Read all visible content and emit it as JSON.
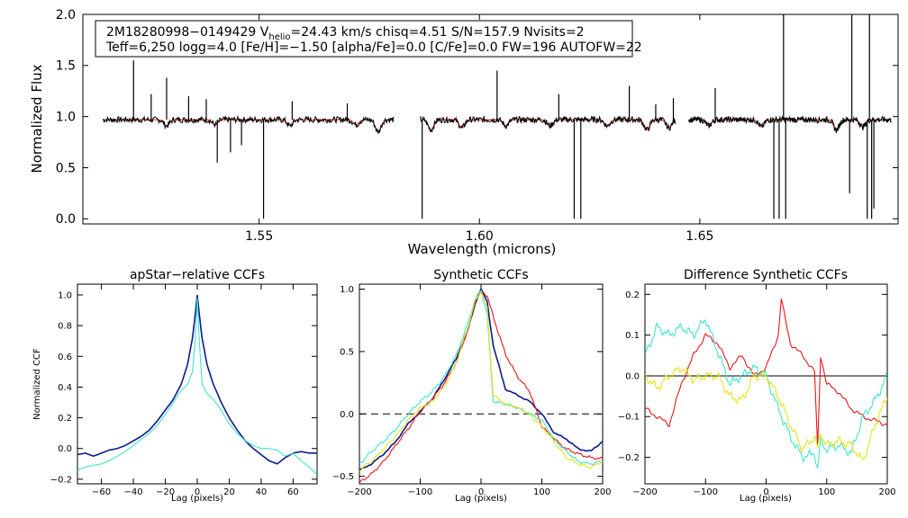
{
  "chart_data": [
    {
      "type": "line",
      "name": "spectrum",
      "xlabel": "Wavelength (microns)",
      "ylabel": "Normalized Flux",
      "xlim": [
        1.51,
        1.695
      ],
      "ylim": [
        -0.05,
        2.0
      ],
      "xticks": [
        "1.55",
        "1.60",
        "1.65"
      ],
      "xtick_values": [
        1.55,
        1.6,
        1.65
      ],
      "yticks": [
        "0.0",
        "0.5",
        "1.0",
        "1.5",
        "2.0"
      ],
      "ytick_values": [
        0.0,
        0.5,
        1.0,
        1.5,
        2.0
      ],
      "info_line1_prefix": "2M18280998−0149429  V",
      "info_line1_sub": "helio",
      "info_line1_suffix": "=24.43 km/s  chisq=4.51  S/N=157.9  Nvisits=2",
      "info_line2": "Teff=6,250 logg=4.0 [Fe/H]=−1.50 [alpha/Fe]=0.0 [C/Fe]=0.0 FW=196 AUTOFW=22",
      "chips": [
        [
          1.5145,
          1.5805
        ],
        [
          1.5865,
          1.6445
        ],
        [
          1.6475,
          1.6935
        ]
      ],
      "continuum": 0.97,
      "colors": {
        "data": "#000000",
        "model": "#e8161b"
      },
      "spikes": [
        {
          "x": 1.5215,
          "y": 1.55
        },
        {
          "x": 1.5255,
          "y": 1.22
        },
        {
          "x": 1.529,
          "y": 1.38
        },
        {
          "x": 1.534,
          "y": 1.2
        },
        {
          "x": 1.538,
          "y": 1.17
        },
        {
          "x": 1.5405,
          "y": 0.55
        },
        {
          "x": 1.5435,
          "y": 0.65
        },
        {
          "x": 1.546,
          "y": 0.72
        },
        {
          "x": 1.551,
          "y": 0.0
        },
        {
          "x": 1.5575,
          "y": 1.15
        },
        {
          "x": 1.57,
          "y": 1.13
        },
        {
          "x": 1.587,
          "y": 0.0
        },
        {
          "x": 1.604,
          "y": 1.45
        },
        {
          "x": 1.618,
          "y": 1.22
        },
        {
          "x": 1.6215,
          "y": 0.0
        },
        {
          "x": 1.623,
          "y": 0.0
        },
        {
          "x": 1.634,
          "y": 1.3
        },
        {
          "x": 1.64,
          "y": 1.12
        },
        {
          "x": 1.644,
          "y": 1.18
        },
        {
          "x": 1.6535,
          "y": 1.28
        },
        {
          "x": 1.6668,
          "y": 0.0
        },
        {
          "x": 1.668,
          "y": 0.0
        },
        {
          "x": 1.669,
          "y": 2.0
        },
        {
          "x": 1.6695,
          "y": 0.0
        },
        {
          "x": 1.684,
          "y": 0.25
        },
        {
          "x": 1.6845,
          "y": 2.0
        },
        {
          "x": 1.688,
          "y": 0.0
        },
        {
          "x": 1.6885,
          "y": 2.0
        },
        {
          "x": 1.689,
          "y": 0.0
        },
        {
          "x": 1.6895,
          "y": 0.1
        }
      ],
      "absorption": [
        {
          "x": 1.529,
          "d": 0.06
        },
        {
          "x": 1.54,
          "d": 0.05
        },
        {
          "x": 1.557,
          "d": 0.06
        },
        {
          "x": 1.572,
          "d": 0.05
        },
        {
          "x": 1.577,
          "d": 0.12
        },
        {
          "x": 1.589,
          "d": 0.1
        },
        {
          "x": 1.596,
          "d": 0.08
        },
        {
          "x": 1.606,
          "d": 0.06
        },
        {
          "x": 1.616,
          "d": 0.06
        },
        {
          "x": 1.629,
          "d": 0.06
        },
        {
          "x": 1.638,
          "d": 0.1
        },
        {
          "x": 1.643,
          "d": 0.08
        },
        {
          "x": 1.652,
          "d": 0.06
        },
        {
          "x": 1.664,
          "d": 0.07
        },
        {
          "x": 1.681,
          "d": 0.1
        },
        {
          "x": 1.687,
          "d": 0.07
        }
      ]
    },
    {
      "type": "line",
      "name": "apstar-ccf",
      "title": "apStar−relative CCFs",
      "xlabel": "Lag (pixels)",
      "ylabel": "Normalized CCF",
      "xlim": [
        -75,
        75
      ],
      "ylim": [
        -0.23,
        1.07
      ],
      "xticks": [
        "−60",
        "−40",
        "−20",
        "0",
        "20",
        "40",
        "60"
      ],
      "xtick_values": [
        -60,
        -40,
        -20,
        0,
        20,
        40,
        60
      ],
      "yticks": [
        "−0.2",
        "0.0",
        "0.2",
        "0.4",
        "0.6",
        "0.8",
        "1.0"
      ],
      "ytick_values": [
        -0.2,
        0.0,
        0.2,
        0.4,
        0.6,
        0.8,
        1.0
      ],
      "series": [
        {
          "name": "total",
          "color": "#0d1a8c",
          "x": [
            -75,
            -70,
            -65,
            -60,
            -55,
            -50,
            -45,
            -40,
            -35,
            -30,
            -25,
            -20,
            -15,
            -10,
            -6,
            -3,
            -1,
            0,
            1,
            3,
            6,
            10,
            15,
            20,
            25,
            30,
            35,
            40,
            45,
            50,
            55,
            60,
            65,
            70,
            75
          ],
          "y": [
            -0.04,
            -0.03,
            -0.05,
            -0.03,
            -0.01,
            0.0,
            0.02,
            0.05,
            0.08,
            0.12,
            0.18,
            0.25,
            0.32,
            0.42,
            0.55,
            0.72,
            0.9,
            1.0,
            0.9,
            0.72,
            0.55,
            0.42,
            0.3,
            0.2,
            0.12,
            0.05,
            0.0,
            -0.04,
            -0.08,
            -0.1,
            -0.06,
            -0.03,
            -0.02,
            -0.03,
            -0.03
          ]
        },
        {
          "name": "visit",
          "color": "#3fe6c9",
          "x": [
            -75,
            -70,
            -65,
            -60,
            -55,
            -50,
            -45,
            -40,
            -35,
            -30,
            -25,
            -20,
            -15,
            -10,
            -6,
            -3,
            -1,
            0,
            1,
            3,
            6,
            10,
            15,
            20,
            25,
            30,
            35,
            40,
            45,
            50,
            55,
            60,
            65,
            70,
            75
          ],
          "y": [
            -0.14,
            -0.12,
            -0.11,
            -0.1,
            -0.08,
            -0.05,
            -0.02,
            0.02,
            0.06,
            0.1,
            0.15,
            0.22,
            0.3,
            0.38,
            0.42,
            0.5,
            0.75,
            0.98,
            0.75,
            0.42,
            0.36,
            0.32,
            0.25,
            0.16,
            0.1,
            0.05,
            0.02,
            0.0,
            0.0,
            -0.01,
            -0.05,
            -0.03,
            -0.08,
            -0.12,
            -0.17
          ]
        }
      ]
    },
    {
      "type": "line",
      "name": "synthetic-ccf",
      "title": "Synthetic CCFs",
      "xlabel": "Lag (pixels)",
      "ylabel": "",
      "xlim": [
        -200,
        200
      ],
      "ylim": [
        -0.56,
        1.04
      ],
      "xticks": [
        "−200",
        "−100",
        "0",
        "100",
        "200"
      ],
      "xtick_values": [
        -200,
        -100,
        0,
        100,
        200
      ],
      "yticks": [
        "−0.5",
        "0.0",
        "0.5",
        "1.0"
      ],
      "ytick_values": [
        -0.5,
        0.0,
        0.5,
        1.0
      ],
      "zero_line": 0.0,
      "series": [
        {
          "name": "total",
          "color": "#0d1a8c",
          "x": [
            -200,
            -180,
            -160,
            -140,
            -120,
            -100,
            -80,
            -60,
            -40,
            -20,
            -10,
            0,
            10,
            20,
            40,
            60,
            80,
            100,
            120,
            140,
            160,
            180,
            200
          ],
          "y": [
            -0.45,
            -0.4,
            -0.32,
            -0.22,
            -0.08,
            0.02,
            0.12,
            0.28,
            0.45,
            0.7,
            0.88,
            1.0,
            0.9,
            0.55,
            0.2,
            0.15,
            0.1,
            0.0,
            -0.15,
            -0.2,
            -0.28,
            -0.3,
            -0.22
          ]
        },
        {
          "name": "chip-a",
          "color": "#e8161b",
          "x": [
            -200,
            -180,
            -160,
            -140,
            -120,
            -100,
            -80,
            -60,
            -40,
            -20,
            -10,
            0,
            10,
            20,
            40,
            60,
            80,
            100,
            120,
            140,
            160,
            180,
            200
          ],
          "y": [
            -0.55,
            -0.48,
            -0.38,
            -0.25,
            -0.12,
            0.02,
            0.12,
            0.25,
            0.42,
            0.7,
            0.9,
            0.98,
            0.95,
            0.78,
            0.48,
            0.3,
            0.18,
            -0.1,
            -0.2,
            -0.28,
            -0.32,
            -0.35,
            -0.36
          ]
        },
        {
          "name": "chip-b",
          "color": "#3fe6c9",
          "x": [
            -200,
            -180,
            -160,
            -140,
            -120,
            -100,
            -80,
            -60,
            -40,
            -20,
            -10,
            0,
            10,
            20,
            40,
            60,
            80,
            100,
            120,
            140,
            160,
            180,
            200
          ],
          "y": [
            -0.4,
            -0.3,
            -0.22,
            -0.12,
            0.0,
            0.1,
            0.18,
            0.3,
            0.48,
            0.75,
            0.92,
            0.99,
            0.8,
            0.1,
            0.08,
            0.05,
            0.0,
            -0.05,
            -0.2,
            -0.3,
            -0.38,
            -0.4,
            -0.38
          ]
        },
        {
          "name": "chip-c",
          "color": "#e3e61c",
          "x": [
            -200,
            -180,
            -160,
            -140,
            -120,
            -100,
            -80,
            -60,
            -40,
            -20,
            -10,
            0,
            10,
            20,
            40,
            60,
            80,
            100,
            120,
            140,
            160,
            180,
            200
          ],
          "y": [
            -0.45,
            -0.38,
            -0.28,
            -0.18,
            -0.05,
            0.05,
            0.1,
            0.22,
            0.42,
            0.72,
            0.9,
            0.98,
            0.85,
            0.15,
            0.08,
            0.05,
            0.0,
            -0.1,
            -0.22,
            -0.35,
            -0.4,
            -0.43,
            -0.38
          ]
        }
      ]
    },
    {
      "type": "line",
      "name": "difference-ccf",
      "title": "Difference Synthetic CCFs",
      "xlabel": "Lag (pixels)",
      "ylabel": "",
      "xlim": [
        -200,
        200
      ],
      "ylim": [
        -0.265,
        0.225
      ],
      "xticks": [
        "−200",
        "−100",
        "0",
        "100",
        "200"
      ],
      "xtick_values": [
        -200,
        -100,
        0,
        100,
        200
      ],
      "yticks": [
        "−0.2",
        "−0.1",
        "0.0",
        "0.1",
        "0.2"
      ],
      "ytick_values": [
        -0.2,
        -0.1,
        0.0,
        0.1,
        0.2
      ],
      "zero_line": 0.0,
      "series": [
        {
          "name": "chip-a",
          "color": "#e8161b",
          "x": [
            -200,
            -180,
            -160,
            -140,
            -120,
            -100,
            -80,
            -60,
            -40,
            -20,
            0,
            20,
            25,
            30,
            40,
            60,
            80,
            85,
            90,
            100,
            120,
            140,
            160,
            180,
            200
          ],
          "y": [
            -0.08,
            -0.1,
            -0.12,
            -0.02,
            0.05,
            0.1,
            0.08,
            0.02,
            0.05,
            0.0,
            0.02,
            0.1,
            0.19,
            0.15,
            0.08,
            0.05,
            0.01,
            -0.18,
            0.05,
            -0.02,
            -0.04,
            -0.08,
            -0.1,
            -0.11,
            -0.12
          ]
        },
        {
          "name": "chip-b",
          "color": "#3fe6c9",
          "x": [
            -200,
            -180,
            -160,
            -140,
            -120,
            -100,
            -80,
            -60,
            -40,
            -20,
            0,
            20,
            40,
            60,
            80,
            85,
            90,
            100,
            120,
            140,
            160,
            180,
            200
          ],
          "y": [
            0.05,
            0.12,
            0.1,
            0.12,
            0.1,
            0.14,
            0.06,
            -0.02,
            0.0,
            0.02,
            0.0,
            -0.08,
            -0.15,
            -0.2,
            -0.19,
            -0.23,
            -0.16,
            -0.18,
            -0.17,
            -0.19,
            -0.1,
            -0.06,
            0.0
          ]
        },
        {
          "name": "chip-c",
          "color": "#e3e61c",
          "x": [
            -200,
            -180,
            -160,
            -140,
            -120,
            -100,
            -80,
            -60,
            -40,
            -20,
            0,
            20,
            40,
            60,
            80,
            85,
            90,
            100,
            120,
            140,
            160,
            180,
            200
          ],
          "y": [
            0.0,
            -0.03,
            0.0,
            0.02,
            -0.01,
            0.0,
            0.0,
            -0.05,
            -0.06,
            0.0,
            0.0,
            -0.05,
            -0.12,
            -0.18,
            -0.15,
            -0.18,
            -0.14,
            -0.17,
            -0.16,
            -0.17,
            -0.21,
            -0.12,
            -0.05
          ]
        }
      ]
    }
  ]
}
